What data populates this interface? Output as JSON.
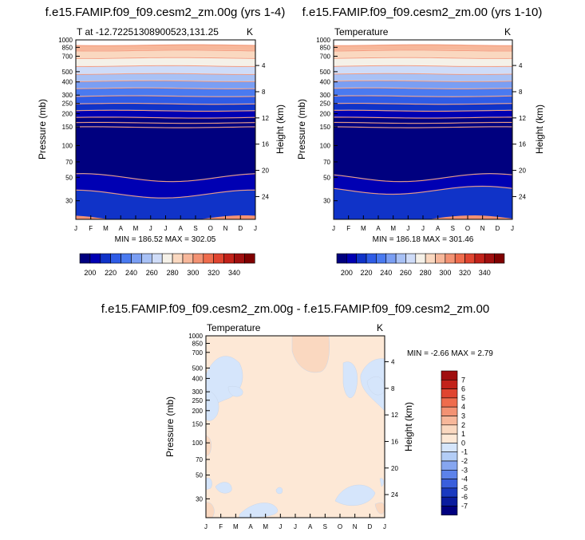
{
  "panels": [
    {
      "title": "f.e15.FAMIP.f09_f09.cesm2_zm.00g (yrs 1-4)",
      "subtitle_left": "T at -12.72251308900523,131.25",
      "subtitle_right": "K",
      "ylabel_left": "Pressure (mb)",
      "ylabel_right": "Height (km)",
      "minmax": "MIN = 186.52 MAX = 302.05"
    },
    {
      "title": "f.e15.FAMIP.f09_f09.cesm2_zm.00 (yrs 1-10)",
      "subtitle_left": "Temperature",
      "subtitle_right": "K",
      "ylabel_left": "Pressure (mb)",
      "ylabel_right": "Height (km)",
      "minmax": "MIN = 186.18 MAX = 301.46"
    },
    {
      "title": "f.e15.FAMIP.f09_f09.cesm2_zm.00g - f.e15.FAMIP.f09_f09.cesm2_zm.00",
      "subtitle_left": "Temperature",
      "subtitle_right": "K",
      "ylabel_left": "Pressure (mb)",
      "ylabel_right": "Height (km)",
      "minmax": "MIN =  -2.66 MAX =   2.79"
    }
  ],
  "axes": {
    "months": [
      "J",
      "F",
      "M",
      "A",
      "M",
      "J",
      "J",
      "A",
      "S",
      "O",
      "N",
      "D",
      "J"
    ],
    "pressure_ticks": [
      30,
      50,
      70,
      100,
      150,
      200,
      250,
      300,
      400,
      500,
      700,
      850,
      1000
    ],
    "height_ticks": [
      24,
      20,
      16,
      12,
      8,
      4
    ],
    "ylim_mb": [
      1000,
      20
    ]
  },
  "colorbar_temperature": {
    "labels": [
      "200",
      "220",
      "240",
      "260",
      "280",
      "300",
      "320",
      "340"
    ],
    "colors": [
      "#00007f",
      "#0000b3",
      "#1033c8",
      "#2f5ce6",
      "#4a7af0",
      "#7a9ef3",
      "#a8c1f5",
      "#cfdcf8",
      "#f5f1e8",
      "#fad8c0",
      "#f7b79a",
      "#f39273",
      "#ef6c4d",
      "#e04530",
      "#c2221a",
      "#a00f0f",
      "#7f0000"
    ]
  },
  "colorbar_difference": {
    "labels": [
      "7",
      "6",
      "5",
      "4",
      "3",
      "2",
      "1",
      "0",
      "-1",
      "-2",
      "-3",
      "-4",
      "-5",
      "-6",
      "-7"
    ],
    "colors": [
      "#a00f0f",
      "#c2221a",
      "#e04530",
      "#ef6c4d",
      "#f39273",
      "#f7b79a",
      "#fad8c0",
      "#fde8d6",
      "#d5e5fb",
      "#b3cdf6",
      "#86a6f0",
      "#5c82ea",
      "#3a5fdc",
      "#1a3ac0",
      "#0a1c9e",
      "#00007f"
    ]
  },
  "chart_data": [
    {
      "type": "heatmap",
      "title": "f.e15.FAMIP.f09_f09.cesm2_zm.00g (yrs 1-4)",
      "xlabel": "",
      "ylabel": "Pressure (mb)",
      "units": "K",
      "x": [
        "J",
        "F",
        "M",
        "A",
        "M",
        "J",
        "J",
        "A",
        "S",
        "O",
        "N",
        "D",
        "J"
      ],
      "y_pressure_levels": [
        1000,
        850,
        700,
        500,
        400,
        300,
        250,
        200,
        150,
        100,
        70,
        50,
        30
      ],
      "zmin": 186.52,
      "zmax": 302.05,
      "band_bottom_pressures": [
        1000,
        900,
        800,
        680,
        570,
        480,
        410,
        350,
        295,
        250,
        215,
        185,
        165,
        150,
        50,
        35
      ],
      "band_top_pressures": [
        900,
        800,
        680,
        570,
        480,
        410,
        350,
        295,
        250,
        215,
        185,
        165,
        150,
        50,
        35,
        20
      ],
      "band_colors": [
        "#f39273",
        "#f7b79a",
        "#fad8c0",
        "#f5f1e8",
        "#cfdcf8",
        "#a8c1f5",
        "#7a9ef3",
        "#4a7af0",
        "#2f5ce6",
        "#1033c8",
        "#0000b3",
        "#00007f",
        "#00007f",
        "#00007f",
        "#0000b3",
        "#1033c8"
      ]
    },
    {
      "type": "heatmap",
      "title": "f.e15.FAMIP.f09_f09.cesm2_zm.00 (yrs 1-10)",
      "xlabel": "",
      "ylabel": "Pressure (mb)",
      "units": "K",
      "x": [
        "J",
        "F",
        "M",
        "A",
        "M",
        "J",
        "J",
        "A",
        "S",
        "O",
        "N",
        "D",
        "J"
      ],
      "y_pressure_levels": [
        1000,
        850,
        700,
        500,
        400,
        300,
        250,
        200,
        150,
        100,
        70,
        50,
        30
      ],
      "zmin": 186.18,
      "zmax": 301.46,
      "band_bottom_pressures": [
        1000,
        900,
        800,
        680,
        570,
        480,
        410,
        350,
        295,
        250,
        215,
        185,
        165,
        150,
        50,
        38
      ],
      "band_top_pressures": [
        900,
        800,
        680,
        570,
        480,
        410,
        350,
        295,
        250,
        215,
        185,
        165,
        150,
        50,
        38,
        20
      ],
      "band_colors": [
        "#f39273",
        "#f7b79a",
        "#fad8c0",
        "#f5f1e8",
        "#cfdcf8",
        "#a8c1f5",
        "#7a9ef3",
        "#4a7af0",
        "#2f5ce6",
        "#1033c8",
        "#0000b3",
        "#00007f",
        "#00007f",
        "#00007f",
        "#0000b3",
        "#1033c8"
      ]
    },
    {
      "type": "heatmap",
      "title": "f.e15.FAMIP.f09_f09.cesm2_zm.00g - f.e15.FAMIP.f09_f09.cesm2_zm.00",
      "xlabel": "",
      "ylabel": "Pressure (mb)",
      "units": "K",
      "x": [
        "J",
        "F",
        "M",
        "A",
        "M",
        "J",
        "J",
        "A",
        "S",
        "O",
        "N",
        "D",
        "J"
      ],
      "y_pressure_levels": [
        1000,
        850,
        700,
        500,
        400,
        300,
        250,
        200,
        150,
        100,
        70,
        50,
        30
      ],
      "zmin": -2.66,
      "zmax": 2.79,
      "background_range": [
        0,
        1
      ]
    }
  ]
}
